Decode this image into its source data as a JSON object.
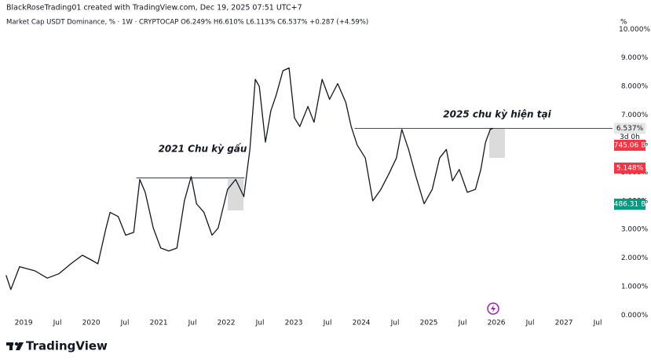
{
  "header": {
    "credit": "BlackRoseTrading01 created with TradingView.com, Dec 19, 2025 07:51 UTC+7",
    "legend": "Market Cap USDT Dominance, % · 1W · CRYPTOCAP  O6.249% H6.610% L6.113% C6.537% +0.287 (+4.59%)"
  },
  "chart_data": {
    "type": "line",
    "color": "#131722",
    "grid": false,
    "y_unit": "%",
    "x": [
      2018.74,
      2018.81,
      2018.94,
      2019.17,
      2019.35,
      2019.52,
      2019.7,
      2019.87,
      2019.99,
      2020.1,
      2020.22,
      2020.28,
      2020.4,
      2020.51,
      2020.63,
      2020.72,
      2020.8,
      2020.92,
      2021.03,
      2021.15,
      2021.27,
      2021.38,
      2021.48,
      2021.56,
      2021.67,
      2021.79,
      2021.88,
      2022.02,
      2022.14,
      2022.26,
      2022.35,
      2022.43,
      2022.49,
      2022.58,
      2022.66,
      2022.74,
      2022.84,
      2022.93,
      2023.01,
      2023.09,
      2023.21,
      2023.3,
      2023.42,
      2023.53,
      2023.65,
      2023.77,
      2023.85,
      2023.94,
      2024.06,
      2024.17,
      2024.29,
      2024.41,
      2024.52,
      2024.6,
      2024.7,
      2024.81,
      2024.93,
      2025.05,
      2025.16,
      2025.26,
      2025.35,
      2025.45,
      2025.57,
      2025.69,
      2025.77,
      2025.84,
      2025.91,
      2025.95
    ],
    "values": [
      1.4,
      0.9,
      1.7,
      1.55,
      1.3,
      1.45,
      1.8,
      2.1,
      1.95,
      1.8,
      3.05,
      3.6,
      3.45,
      2.8,
      2.9,
      4.75,
      4.3,
      3.05,
      2.35,
      2.25,
      2.35,
      4.0,
      4.85,
      3.9,
      3.6,
      2.8,
      3.05,
      4.4,
      4.75,
      4.15,
      5.8,
      8.25,
      8.0,
      6.05,
      7.15,
      7.7,
      8.55,
      8.65,
      6.9,
      6.6,
      7.3,
      6.75,
      8.25,
      7.55,
      8.1,
      7.45,
      6.6,
      5.95,
      5.5,
      4.0,
      4.4,
      4.95,
      5.5,
      6.5,
      5.8,
      4.85,
      3.9,
      4.4,
      5.5,
      5.8,
      4.7,
      5.1,
      4.3,
      4.4,
      5.1,
      6.05,
      6.5,
      6.537
    ],
    "xlim": [
      2018.65,
      2027.72
    ],
    "ylim": [
      0,
      10.2
    ],
    "xticks": [
      2019,
      {
        "value": 2019.5,
        "label": "Jul"
      },
      2020,
      {
        "value": 2020.5,
        "label": "Jul"
      },
      2021,
      {
        "value": 2021.5,
        "label": "Jul"
      },
      2022,
      {
        "value": 2022.5,
        "label": "Jul"
      },
      2023,
      {
        "value": 2023.5,
        "label": "Jul"
      },
      2024,
      {
        "value": 2024.5,
        "label": "Jul"
      },
      2025,
      {
        "value": 2025.5,
        "label": "Jul"
      },
      2026,
      {
        "value": 2026.5,
        "label": "Jul"
      },
      2027,
      {
        "value": 2027.5,
        "label": "Jul"
      }
    ],
    "yticks": [
      {
        "value": 0,
        "label": "0.000%"
      },
      {
        "value": 1,
        "label": "1.000%"
      },
      {
        "value": 2,
        "label": "2.000%"
      },
      {
        "value": 3,
        "label": "3.000%"
      },
      {
        "value": 4,
        "label": "4.000%"
      },
      {
        "value": 5,
        "label": "5.000%"
      },
      {
        "value": 6,
        "label": "6.000%"
      },
      {
        "value": 7,
        "label": "7.000%"
      },
      {
        "value": 8,
        "label": "8.000%"
      },
      {
        "value": 9,
        "label": "9.000%"
      },
      {
        "value": 10,
        "label": "10.000%"
      }
    ],
    "levels": [
      {
        "value": 4.8,
        "x": [
          2020.67,
          2022.27
        ]
      },
      {
        "value": 6.537,
        "x": [
          2023.9,
          2027.72
        ]
      }
    ],
    "annotations": [
      "2021 Chu kỳ gấu",
      "2025 chu kỳ hiện tại"
    ],
    "last_label": {
      "value": 6.537,
      "label": "6.537%"
    },
    "countdown": "3d 0h",
    "side_labels": [
      {
        "label": "745.06 B",
        "color": "#f23645"
      },
      {
        "value": 5.148,
        "label": "5.148%",
        "color": "#f23645"
      },
      {
        "label": "486.31 B",
        "color": "#089981"
      }
    ]
  },
  "footer": {
    "brand": "TradingView"
  }
}
